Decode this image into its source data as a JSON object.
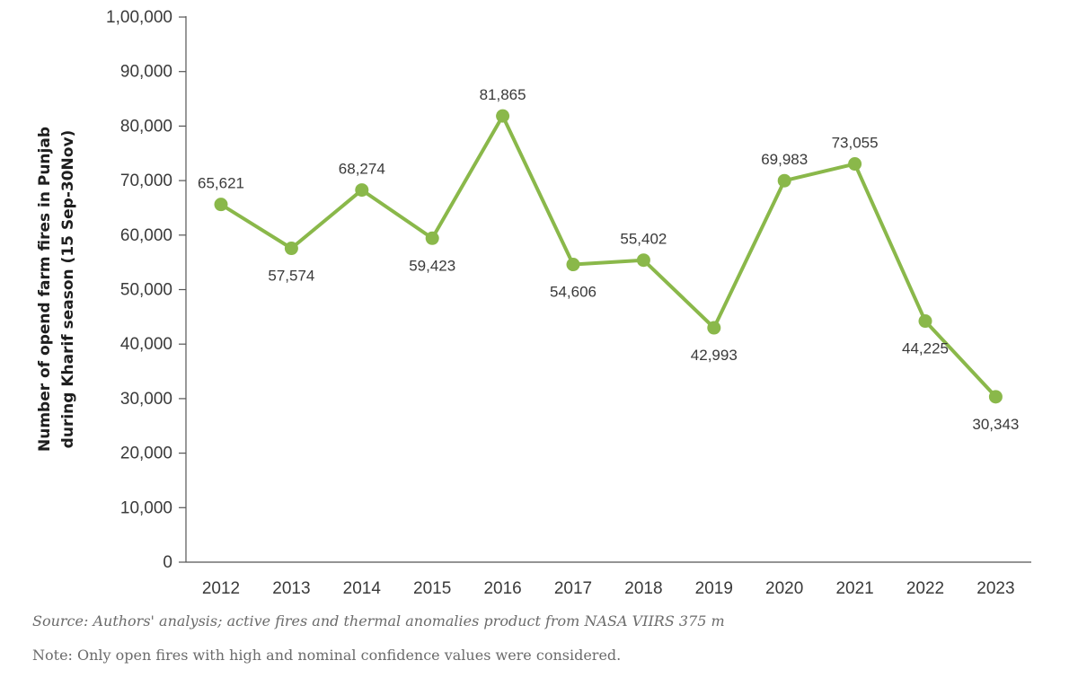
{
  "chart_data": {
    "type": "line",
    "title": "",
    "xlabel": "",
    "ylabel": "Number of opend farm fires in Punjab during Kharif season (15 Sep-30Nov)",
    "ylabel_lines": [
      "Number of opend farm fires in Punjab",
      "during Kharif season (15 Sep-30Nov)"
    ],
    "categories": [
      "2012",
      "2013",
      "2014",
      "2015",
      "2016",
      "2017",
      "2018",
      "2019",
      "2020",
      "2021",
      "2022",
      "2023"
    ],
    "series": [
      {
        "values": [
          65621,
          57574,
          68274,
          59423,
          81865,
          54606,
          55402,
          42993,
          69983,
          73055,
          44225,
          30343
        ],
        "labels": [
          "65,621",
          "57,574",
          "68,274",
          "59,423",
          "81,865",
          "54,606",
          "55,402",
          "42,993",
          "69,983",
          "73,055",
          "44,225",
          "30,343"
        ],
        "label_position": [
          "above",
          "below",
          "above",
          "below",
          "above",
          "below",
          "above",
          "below",
          "above",
          "above",
          "below",
          "below"
        ],
        "color": "#8ab84a"
      }
    ],
    "ylim": [
      0,
      100000
    ],
    "yticks": [
      0,
      10000,
      20000,
      30000,
      40000,
      50000,
      60000,
      70000,
      80000,
      90000,
      100000
    ],
    "ytick_labels": [
      "0",
      "10,000",
      "20,000",
      "30,000",
      "40,000",
      "50,000",
      "60,000",
      "70,000",
      "80,000",
      "90,000",
      "1,00,000"
    ],
    "grid": false,
    "legend": "none"
  },
  "notes": {
    "source": "Source: Authors' analysis; active fires and thermal anomalies product from NASA VIIRS 375 m",
    "note": "Note: Only open fires with high and nominal confidence values were considered."
  }
}
